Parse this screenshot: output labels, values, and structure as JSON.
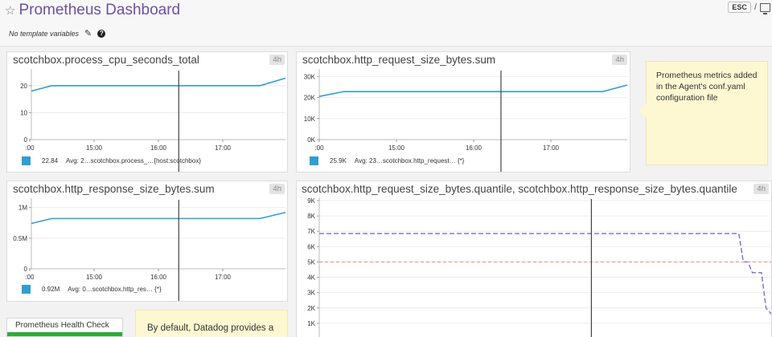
{
  "header": {
    "title": "Prometheus Dashboard",
    "star_icon": "☆",
    "esc_label": "ESC",
    "separator": "/"
  },
  "template_vars": {
    "label": "No template variables",
    "pencil_icon": "✎",
    "help_icon": "?"
  },
  "colors": {
    "accent": "#6a52a5",
    "series": "#2d9ed6",
    "cursor": "#444444",
    "dashed_series": "#7b6cc8",
    "threshold": "#f08a8a",
    "ok_status": "#27ae37"
  },
  "widgets": [
    {
      "title": "scotchbox.process_cpu_seconds_total",
      "timeframe": "4h",
      "legend": {
        "value": "22.84",
        "avg": "Avg: 2…",
        "metric": "scotchbox.process_…{host:scotchbox}"
      }
    },
    {
      "title": "scotchbox.http_request_size_bytes.sum",
      "timeframe": "4h",
      "legend": {
        "value": "25.9K",
        "avg": "Avg: 23…",
        "metric": "scotchbox.http_request… {*}"
      }
    },
    {
      "title": "scotchbox.http_response_size_bytes.sum",
      "timeframe": "4h",
      "legend": {
        "value": "0.92M",
        "avg": "Avg: 0…",
        "metric": "scotchbox.http_res… {*}"
      }
    },
    {
      "title": "scotchbox.http_request_size_bytes.quantile, scotchbox.http_response_size_bytes.quantile",
      "timeframe": "4h"
    }
  ],
  "notes": [
    {
      "text": "Prometheus metrics added in the Agent's conf.yaml configuration file"
    },
    {
      "text": "By default, Datadog provides a"
    }
  ],
  "health_check": {
    "label": "Prometheus Health Check",
    "status": "OK"
  },
  "chart_data": [
    {
      "type": "line",
      "x_ticks": [
        ":00",
        "15:00",
        "16:00",
        "17:00"
      ],
      "y_ticks": [
        "0",
        "10",
        "20"
      ],
      "ylim": [
        0,
        25
      ],
      "cursor_x": 0.58,
      "series": [
        {
          "values": [
            [
              0,
              18
            ],
            [
              0.08,
              20
            ],
            [
              0.9,
              20
            ],
            [
              1,
              22.8
            ]
          ]
        }
      ]
    },
    {
      "type": "line",
      "x_ticks": [
        ":00",
        "15:00",
        "16:00",
        "17:00"
      ],
      "y_ticks": [
        "0K",
        "10K",
        "20K",
        "30K"
      ],
      "ylim": [
        0,
        32000
      ],
      "cursor_x": 0.59,
      "series": [
        {
          "values": [
            [
              0,
              20500
            ],
            [
              0.08,
              22800
            ],
            [
              0.92,
              22800
            ],
            [
              1,
              25900
            ]
          ]
        }
      ]
    },
    {
      "type": "line",
      "x_ticks": [
        ":00",
        "15:00",
        "16:00",
        "17:00"
      ],
      "y_ticks": [
        "0",
        "0.5M",
        "1M"
      ],
      "ylim": [
        0,
        1.1
      ],
      "cursor_x": 0.58,
      "series": [
        {
          "values": [
            [
              0,
              0.74
            ],
            [
              0.08,
              0.82
            ],
            [
              0.9,
              0.82
            ],
            [
              1,
              0.92
            ]
          ]
        }
      ]
    },
    {
      "type": "line",
      "x_ticks": [],
      "y_ticks": [
        "1K",
        "2K",
        "3K",
        "4K",
        "5K",
        "6K",
        "7K",
        "8K",
        "9K"
      ],
      "ylim": [
        0,
        9000
      ],
      "cursor_x": 0.6,
      "series": [
        {
          "style": "dashed",
          "values": [
            [
              0,
              6850
            ],
            [
              0.925,
              6850
            ],
            [
              0.935,
              5000
            ],
            [
              0.945,
              5000
            ],
            [
              0.955,
              4300
            ],
            [
              0.975,
              4300
            ],
            [
              0.985,
              2000
            ],
            [
              1,
              1500
            ]
          ]
        },
        {
          "style": "threshold",
          "values": [
            [
              0,
              5000
            ],
            [
              1,
              5000
            ]
          ]
        }
      ]
    }
  ]
}
